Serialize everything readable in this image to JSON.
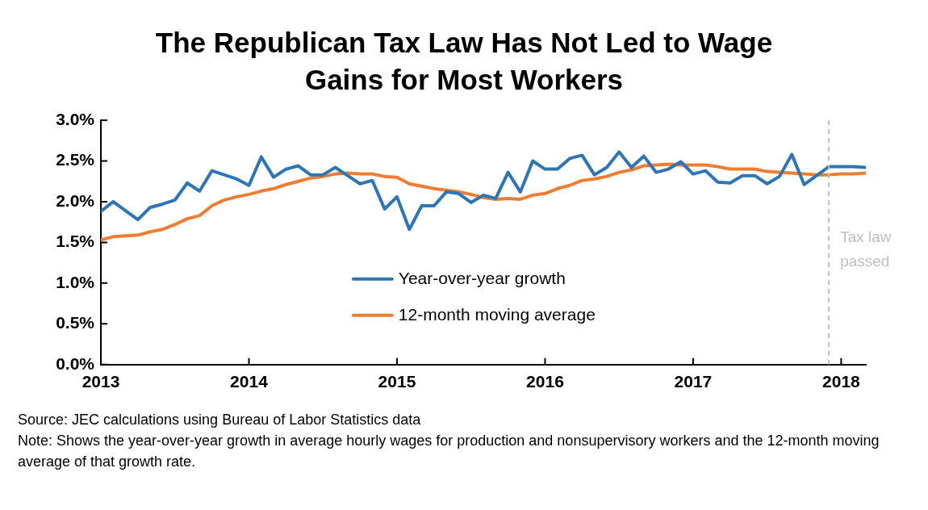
{
  "chart_data": {
    "type": "line",
    "title": "The Republican Tax Law Has Not Led to Wage Gains for Most Workers",
    "annotations": [
      "Source: JEC calculations using Bureau of Labor Statistics data",
      "Note: Shows the year-over-year growth in average hourly wages for production and nonsupervisory workers and the 12-month moving average of that growth rate."
    ],
    "x": [
      "2013-01",
      "2013-02",
      "2013-03",
      "2013-04",
      "2013-05",
      "2013-06",
      "2013-07",
      "2013-08",
      "2013-09",
      "2013-10",
      "2013-11",
      "2013-12",
      "2014-01",
      "2014-02",
      "2014-03",
      "2014-04",
      "2014-05",
      "2014-06",
      "2014-07",
      "2014-08",
      "2014-09",
      "2014-10",
      "2014-11",
      "2014-12",
      "2015-01",
      "2015-02",
      "2015-03",
      "2015-04",
      "2015-05",
      "2015-06",
      "2015-07",
      "2015-08",
      "2015-09",
      "2015-10",
      "2015-11",
      "2015-12",
      "2016-01",
      "2016-02",
      "2016-03",
      "2016-04",
      "2016-05",
      "2016-06",
      "2016-07",
      "2016-08",
      "2016-09",
      "2016-10",
      "2016-11",
      "2016-12",
      "2017-01",
      "2017-02",
      "2017-03",
      "2017-04",
      "2017-05",
      "2017-06",
      "2017-07",
      "2017-08",
      "2017-09",
      "2017-10",
      "2017-11",
      "2017-12",
      "2018-01",
      "2018-02",
      "2018-03"
    ],
    "series": [
      {
        "name": "Year-over-year growth",
        "color": "#2e75b6",
        "values": [
          1.88,
          2.0,
          1.89,
          1.78,
          1.93,
          1.97,
          2.02,
          2.23,
          2.13,
          2.38,
          2.33,
          2.28,
          2.2,
          2.55,
          2.3,
          2.4,
          2.44,
          2.33,
          2.33,
          2.42,
          2.32,
          2.22,
          2.26,
          1.91,
          2.06,
          1.66,
          1.95,
          1.95,
          2.12,
          2.1,
          1.99,
          2.08,
          2.04,
          2.36,
          2.12,
          2.5,
          2.4,
          2.4,
          2.53,
          2.57,
          2.33,
          2.42,
          2.61,
          2.42,
          2.56,
          2.36,
          2.4,
          2.49,
          2.34,
          2.38,
          2.24,
          2.23,
          2.32,
          2.32,
          2.22,
          2.31,
          2.58,
          2.21,
          2.32,
          2.43,
          2.43,
          2.43,
          2.42
        ]
      },
      {
        "name": "12-month moving average",
        "color": "#ed7d31",
        "values": [
          1.53,
          1.57,
          1.58,
          1.59,
          1.63,
          1.66,
          1.72,
          1.79,
          1.83,
          1.95,
          2.02,
          2.06,
          2.09,
          2.13,
          2.16,
          2.21,
          2.25,
          2.29,
          2.31,
          2.34,
          2.35,
          2.34,
          2.34,
          2.31,
          2.3,
          2.22,
          2.19,
          2.16,
          2.14,
          2.12,
          2.09,
          2.05,
          2.03,
          2.04,
          2.03,
          2.08,
          2.1,
          2.16,
          2.2,
          2.26,
          2.28,
          2.31,
          2.36,
          2.39,
          2.44,
          2.45,
          2.46,
          2.45,
          2.45,
          2.45,
          2.43,
          2.4,
          2.4,
          2.4,
          2.37,
          2.36,
          2.35,
          2.34,
          2.33,
          2.33,
          2.34,
          2.34,
          2.35
        ]
      }
    ],
    "xlim": [
      "2013-01",
      "2018-03"
    ],
    "xticks": [
      {
        "value": "2013-01",
        "label": "2013"
      },
      {
        "value": "2014-01",
        "label": "2014"
      },
      {
        "value": "2015-01",
        "label": "2015"
      },
      {
        "value": "2016-01",
        "label": "2016"
      },
      {
        "value": "2017-01",
        "label": "2017"
      },
      {
        "value": "2018-01",
        "label": "2018"
      }
    ],
    "ylim": [
      0,
      3
    ],
    "yticks": [
      {
        "value": 0,
        "label": "0.0%"
      },
      {
        "value": 0.5,
        "label": "0.5%"
      },
      {
        "value": 1,
        "label": "1.0%"
      },
      {
        "value": 1.5,
        "label": "1.5%"
      },
      {
        "value": 2,
        "label": "2.0%"
      },
      {
        "value": 2.5,
        "label": "2.5%"
      },
      {
        "value": 3,
        "label": "3.0%"
      }
    ],
    "ref_lines": [
      {
        "axis": "x",
        "value": "2017-12",
        "label": "Tax law passed",
        "color": "#bfbfbf",
        "line_style": "dashed"
      }
    ],
    "grid": false,
    "legend": "center",
    "marker": "none",
    "line_style": "solid"
  }
}
